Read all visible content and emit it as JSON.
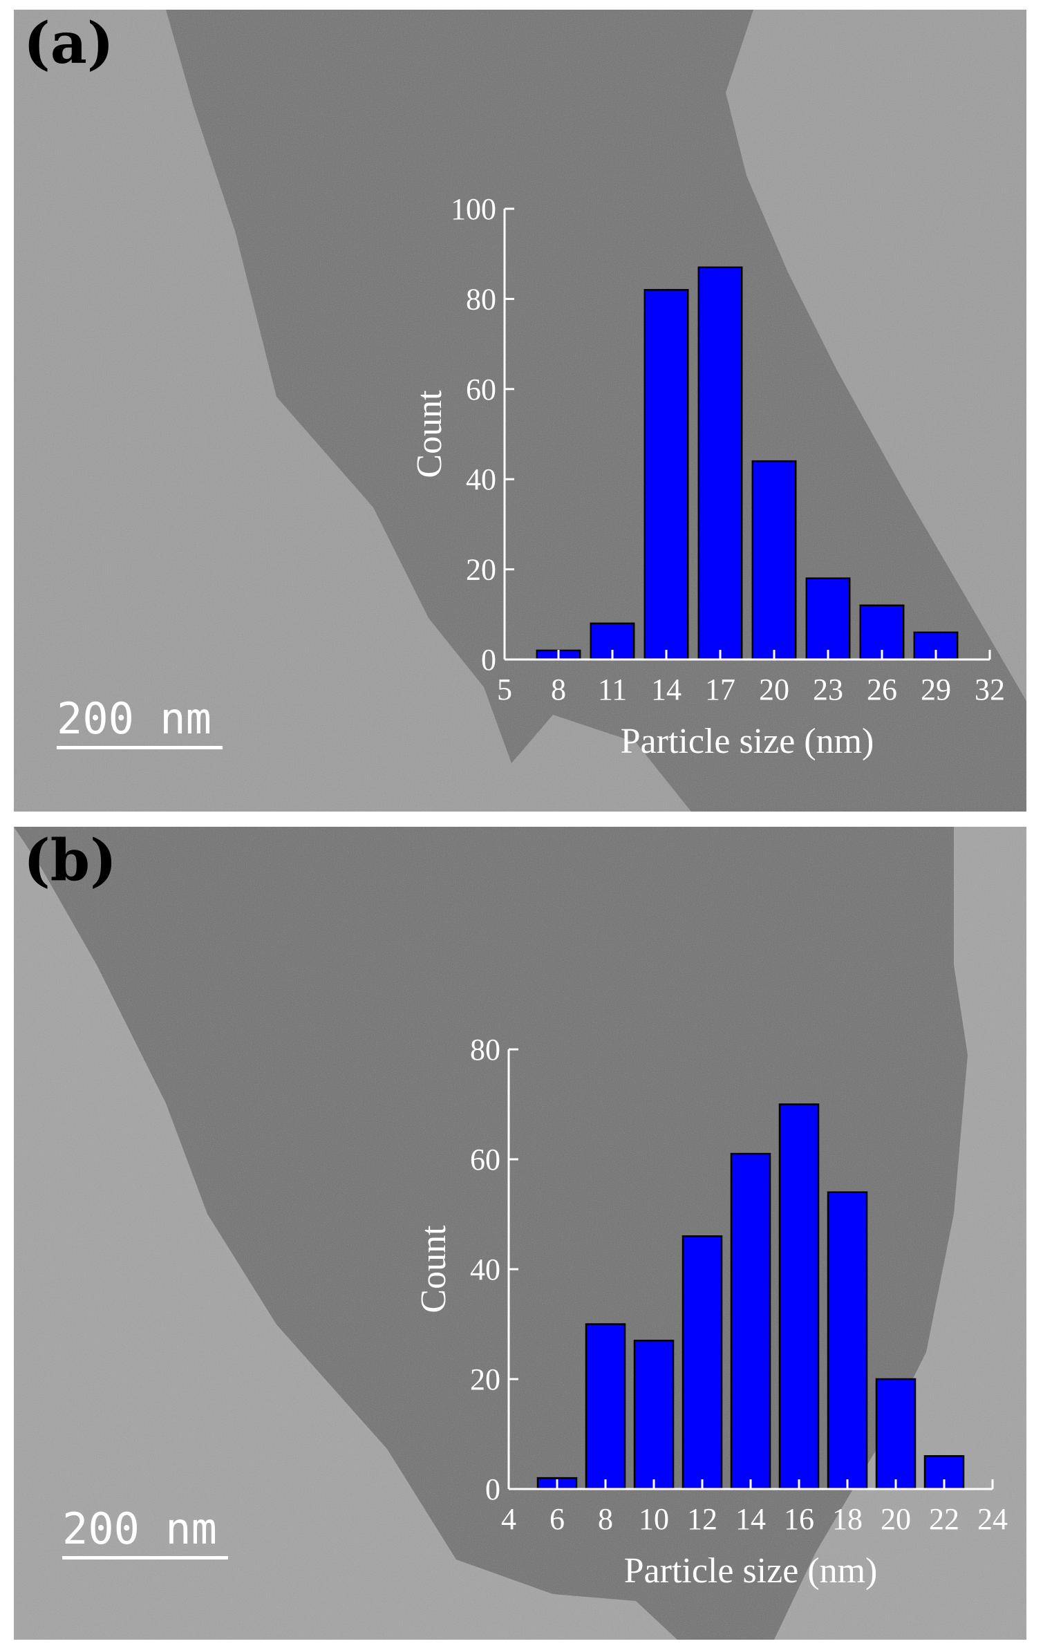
{
  "panels": [
    {
      "label": "(a)",
      "scale_bar": "200 nm",
      "chart_data": {
        "type": "bar",
        "xlabel": "Particle size (nm)",
        "ylabel": "Count",
        "x": [
          8,
          11,
          14,
          17,
          20,
          23,
          26,
          29
        ],
        "values": [
          2,
          8,
          82,
          87,
          44,
          18,
          12,
          6
        ],
        "bin_width": 2.4,
        "xlim": [
          5,
          32
        ],
        "xticks": [
          5,
          8,
          11,
          14,
          17,
          20,
          23,
          26,
          29,
          32
        ],
        "ylim": [
          0,
          100
        ],
        "yticks": [
          0,
          20,
          40,
          60,
          80,
          100
        ],
        "bar_color": "#0000ff",
        "grid": false
      }
    },
    {
      "label": "(b)",
      "scale_bar": "200 nm",
      "chart_data": {
        "type": "bar",
        "xlabel": "Particle size (nm)",
        "ylabel": "Count",
        "x": [
          6,
          8,
          10,
          12,
          14,
          16,
          18,
          20,
          22
        ],
        "values": [
          2,
          30,
          27,
          46,
          61,
          70,
          54,
          20,
          6
        ],
        "bin_width": 1.6,
        "xlim": [
          4,
          24
        ],
        "xticks": [
          4,
          6,
          8,
          10,
          12,
          14,
          16,
          18,
          20,
          22,
          24
        ],
        "ylim": [
          0,
          80
        ],
        "yticks": [
          0,
          20,
          40,
          60,
          80
        ],
        "bar_color": "#0000ff",
        "grid": false
      }
    }
  ]
}
